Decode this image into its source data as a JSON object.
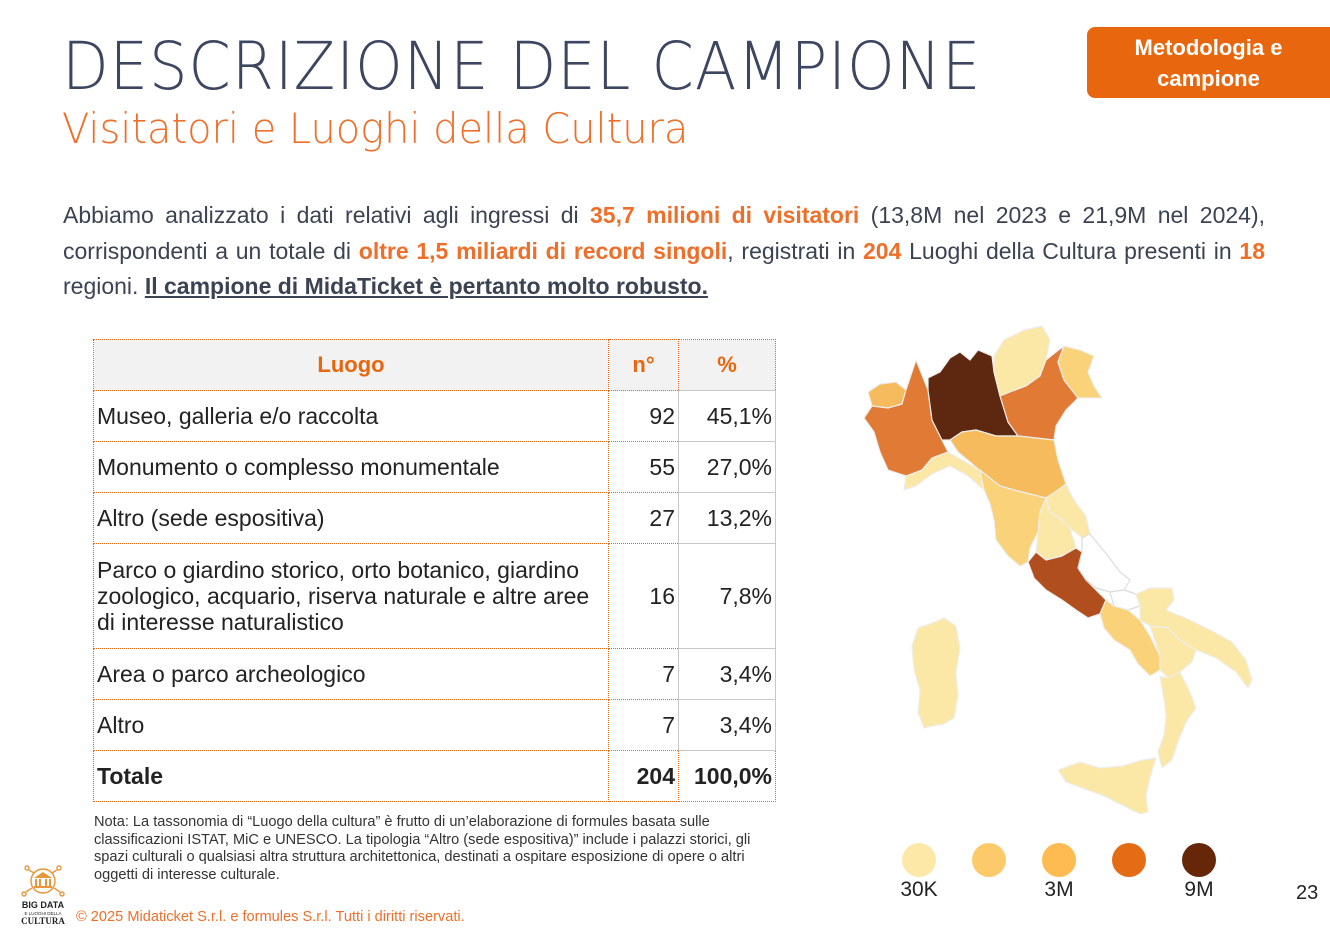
{
  "header": {
    "title": "DESCRIZIONE DEL CAMPIONE",
    "subtitle": "Visitatori e Luoghi della Cultura",
    "section_badge": "Metodologia e campione"
  },
  "intro": {
    "t1": "Abbiamo analizzato i dati relativi agli ingressi di ",
    "h1": "35,7 milioni di visitatori",
    "t2": " (13,8M nel 2023 e 21,9M nel 2024), corrispondenti a un totale di ",
    "h2": "oltre 1,5 miliardi di record singoli",
    "t3": ", registrati in ",
    "h3": "204",
    "t4": " Luoghi della Cultura presenti in ",
    "h4": "18",
    "t5": " regioni. ",
    "u1": "Il campione di MidaTicket è pertanto molto robusto."
  },
  "table": {
    "headers": [
      "Luogo",
      "n°",
      "%"
    ],
    "rows": [
      {
        "luogo": "Museo, galleria e/o raccolta",
        "n": "92",
        "pct": "45,1%"
      },
      {
        "luogo": "Monumento o complesso monumentale",
        "n": "55",
        "pct": "27,0%"
      },
      {
        "luogo": "Altro (sede espositiva)",
        "n": "27",
        "pct": "13,2%"
      },
      {
        "luogo": "Parco o giardino storico, orto botanico, giardino zoologico, acquario, riserva naturale e altre aree di interesse naturalistico",
        "n": "16",
        "pct": "7,8%"
      },
      {
        "luogo": "Area o parco archeologico",
        "n": "7",
        "pct": "3,4%"
      },
      {
        "luogo": "Altro",
        "n": "7",
        "pct": "3,4%"
      }
    ],
    "total": {
      "luogo": "Totale",
      "n": "204",
      "pct": "100,0%"
    }
  },
  "note": "Nota: La tassonomia di “Luogo della cultura” è frutto di un’elaborazione di formules basata sulle classificazioni ISTAT, MiC e UNESCO. La tipologia “Altro (sede espositiva)” include i palazzi storici, gli spazi culturali o qualsiasi altra struttura architettonica, destinati a ospitare esposizione di opere o altri oggetti di interesse culturale.",
  "map": {
    "colors": {
      "c1": "#fbe8a6",
      "c2": "#f9d27a",
      "c3": "#f5bb5c",
      "c4": "#e07a34",
      "c5": "#b04e1e",
      "c6": "#5e2810",
      "none": "#ffffff",
      "border": "#e6e6e6"
    },
    "legend": [
      {
        "label": "30K",
        "color": "#fde8a8"
      },
      {
        "label": "",
        "color": "#fdca6b"
      },
      {
        "label": "3M",
        "color": "#fdbb52"
      },
      {
        "label": "",
        "color": "#e46c15"
      },
      {
        "label": "9M",
        "color": "#652708"
      }
    ]
  },
  "footer": {
    "logo_text": "BIG DATA E LUOGHI DELLA CULTURA",
    "copyright": "© 2025 Midaticket S.r.l. e formules S.r.l. Tutti i diritti riservati.",
    "page_number": "23"
  }
}
